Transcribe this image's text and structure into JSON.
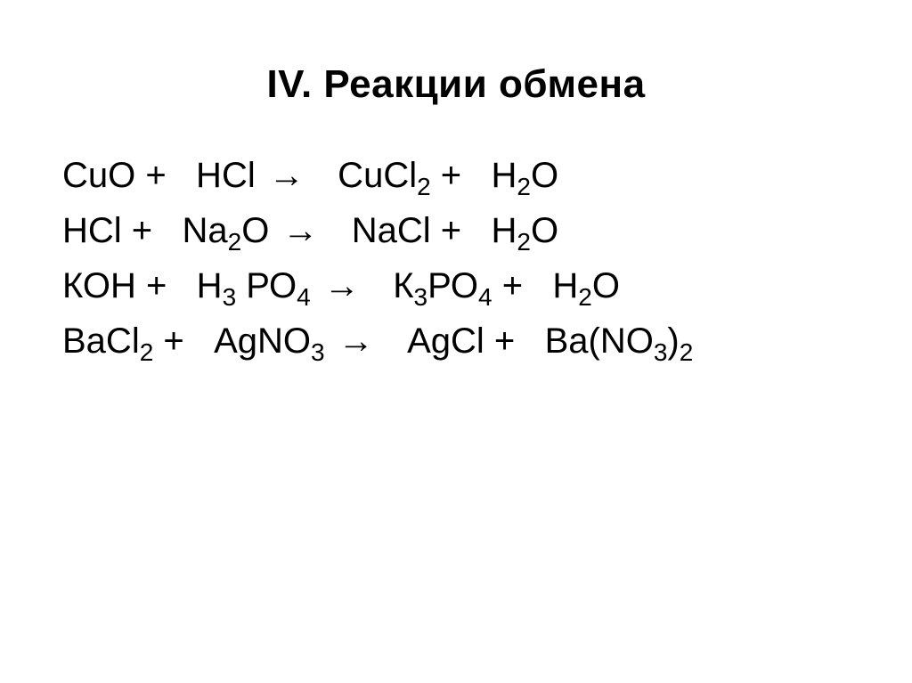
{
  "title": "IV. Реакции обмена",
  "equations": [
    {
      "html": "CuO +&nbsp;&nbsp;&nbsp;HCl <span class=\"arrow\">→</span>&nbsp;&nbsp;&nbsp;CuCl<sub>2</sub> +&nbsp;&nbsp;&nbsp;H<sub>2</sub>O"
    },
    {
      "html": "HCl +&nbsp;&nbsp;&nbsp;Na<sub>2</sub>O <span class=\"arrow\">→</span>&nbsp;&nbsp;&nbsp;NaCl +&nbsp;&nbsp;&nbsp;H<sub>2</sub>O"
    },
    {
      "html": "КОН +&nbsp;&nbsp;&nbsp;Н<sub>3</sub> РО<sub>4</sub> <span class=\"arrow\">→</span>&nbsp;&nbsp;&nbsp;К<sub>3</sub>РО<sub>4</sub> +&nbsp;&nbsp;&nbsp;Н<sub>2</sub>О"
    },
    {
      "html": "BaCl<sub>2</sub> +&nbsp;&nbsp;&nbsp;AgNO<sub>3</sub> <span class=\"arrow\">→</span>&nbsp;&nbsp;&nbsp;AgCl +&nbsp;&nbsp;&nbsp;Ba(NO<sub>3</sub>)<sub>2</sub>"
    }
  ],
  "style": {
    "background_color": "#ffffff",
    "text_color": "#000000",
    "title_fontsize": 44,
    "title_fontweight": 700,
    "equation_fontsize": 40,
    "equation_fontweight": 400,
    "font_family": "Arial"
  }
}
